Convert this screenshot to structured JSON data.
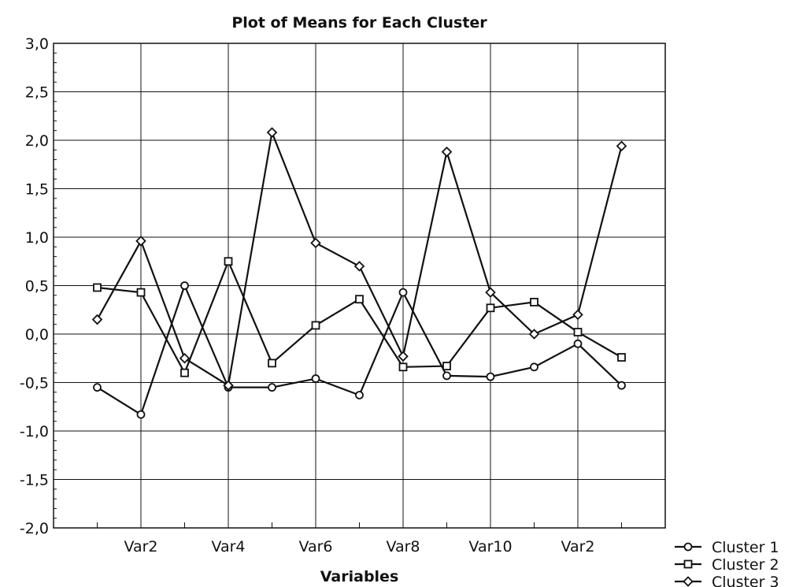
{
  "chart_data": {
    "type": "line",
    "title": "Plot of Means for Each Cluster",
    "xlabel": "Variables",
    "ylabel": "",
    "ylim": [
      -2.0,
      3.0
    ],
    "yticks": [
      "3,0",
      "2,5",
      "2,0",
      "1,5",
      "1,0",
      "0,5",
      "0,0",
      "-0,5",
      "-1,0",
      "-1,5",
      "-2,0"
    ],
    "ytick_values": [
      3.0,
      2.5,
      2.0,
      1.5,
      1.0,
      0.5,
      0.0,
      -0.5,
      -1.0,
      -1.5,
      -2.0
    ],
    "xtick_labels": [
      "Var2",
      "Var4",
      "Var6",
      "Var8",
      "Var10",
      "Var2"
    ],
    "xtick_positions": [
      2,
      4,
      6,
      8,
      10,
      12
    ],
    "x": [
      1,
      2,
      3,
      4,
      5,
      6,
      7,
      8,
      9,
      10,
      11,
      12,
      13
    ],
    "grid": true,
    "legend_position": "bottom-right",
    "series": [
      {
        "name": "Cluster  1",
        "marker": "circle",
        "values": [
          -0.55,
          -0.83,
          0.5,
          -0.55,
          -0.55,
          -0.46,
          -0.63,
          0.43,
          -0.43,
          -0.44,
          -0.34,
          -0.1,
          -0.53
        ]
      },
      {
        "name": "Cluster  2",
        "marker": "square",
        "values": [
          0.48,
          0.43,
          -0.4,
          0.75,
          -0.3,
          0.09,
          0.36,
          -0.34,
          -0.33,
          0.27,
          0.33,
          0.02,
          -0.24
        ]
      },
      {
        "name": "Cluster  3",
        "marker": "diamond",
        "values": [
          0.15,
          0.96,
          -0.25,
          -0.53,
          2.08,
          0.94,
          0.7,
          -0.23,
          1.88,
          0.43,
          0.0,
          0.2,
          1.94
        ]
      }
    ]
  }
}
